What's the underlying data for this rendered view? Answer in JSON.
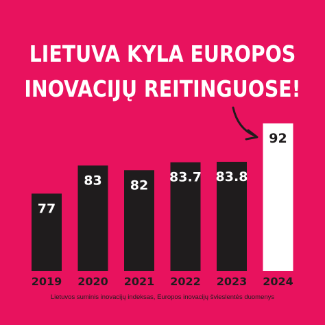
{
  "headline": {
    "line1": "LIETUVA KYLA EUROPOS",
    "line2": "INOVACIJŲ REITINGUOSE!"
  },
  "footnote": "Lietuvos suminis inovacijų indeksas, Europos inovacijų švieslentės duomenys",
  "colors": {
    "background": "#e8125e",
    "bar": "#1f1c1d",
    "highlight_bar": "#ffffff",
    "text_light": "#ffffff",
    "text_dark": "#1f1c1d"
  },
  "chart_data": {
    "type": "bar",
    "categories": [
      "2019",
      "2020",
      "2021",
      "2022",
      "2023",
      "2024"
    ],
    "values": [
      77,
      83,
      82,
      83.7,
      83.8,
      92
    ],
    "value_labels": [
      "77",
      "83",
      "82",
      "83.7",
      "83.8",
      "92"
    ],
    "highlight_index": 5,
    "title": "LIETUVA KYLA EUROPOS INOVACIJŲ REITINGUOSE!",
    "xlabel": "",
    "ylabel": "",
    "ylim": [
      60.5,
      92
    ],
    "grid": false,
    "legend": "none",
    "annotation": "arrow pointing to 2024 bar"
  }
}
